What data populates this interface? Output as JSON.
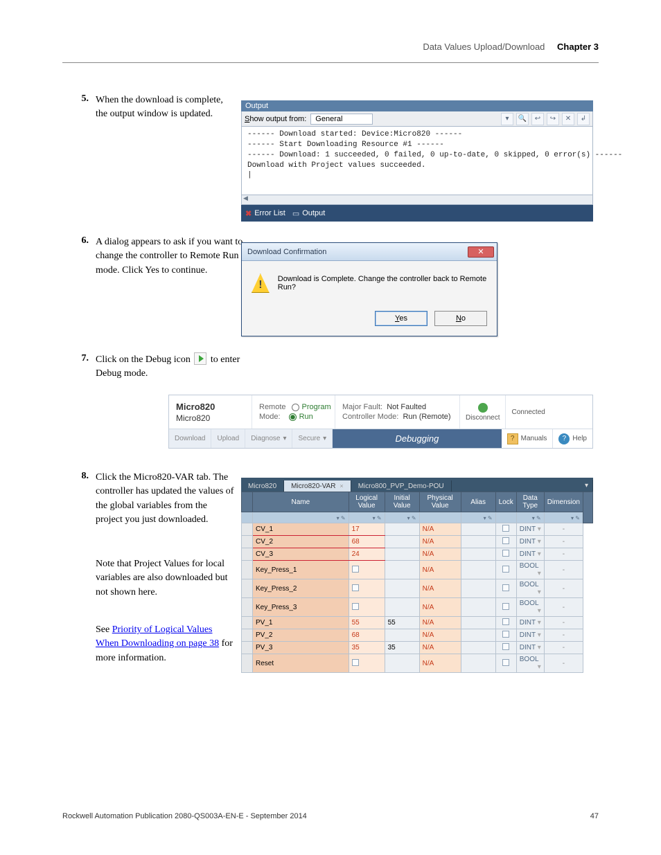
{
  "header": {
    "section": "Data Values Upload/Download",
    "chapter": "Chapter 3"
  },
  "footer": {
    "pub": "Rockwell Automation Publication 2080-QS003A-EN-E - September 2014",
    "page": "47"
  },
  "step5": {
    "num": "5.",
    "text": "When the download is complete, the output window is updated."
  },
  "output": {
    "title": "Output",
    "show_label": "Show output from:",
    "combo_value": "General",
    "body": "------ Download started: Device:Micro820 ------\n------ Start Downloading Resource #1 ------\n------ Download: 1 succeeded, 0 failed, 0 up-to-date, 0 skipped, 0 error(s) ------\nDownload with Project values succeeded.\n|",
    "tab_err": "Error List",
    "tab_out": "Output"
  },
  "step6": {
    "num": "6.",
    "text": "A dialog appears to ask if you want to change the controller to Remote Run mode. Click Yes to continue."
  },
  "dialog": {
    "title": "Download Confirmation",
    "msg": "Download is Complete. Change the controller back to Remote Run?",
    "yes": "Yes",
    "no": "No"
  },
  "step7": {
    "num": "7.",
    "text_before": "Click on the Debug icon",
    "text_after": "to enter Debug mode."
  },
  "ribbon": {
    "name": "Micro820",
    "sub": "Micro820",
    "mode_label": "Remote Mode:",
    "mode_opt1": "Program",
    "mode_opt2": "Run",
    "fault_lbl": "Major Fault:",
    "fault_val": "Not Faulted",
    "ctrl_lbl": "Controller Mode:",
    "ctrl_val": "Run (Remote)",
    "disconnect": "Disconnect",
    "connected": "Connected",
    "btn_download": "Download",
    "btn_upload": "Upload",
    "btn_diagnose": "Diagnose",
    "btn_secure": "Secure",
    "debugging": "Debugging",
    "manuals": "Manuals",
    "help": "Help"
  },
  "step8": {
    "num": "8.",
    "text": "Click the Micro820-VAR tab. The controller has updated the values of the global variables from the project you just downloaded.",
    "note_a": "Note that Project Values for local variables are also downloaded but not shown here.",
    "note_b1": "See ",
    "note_b_link": "Priority of Logical Values When Downloading on page 38",
    "note_b2": " for more information."
  },
  "vartabs": {
    "t1": "Micro820",
    "t2": "Micro820-VAR",
    "t3": "Micro800_PVP_Demo-POU"
  },
  "vartable": {
    "cols": [
      "",
      "Name",
      "Logical Value",
      "Initial Value",
      "Physical Value",
      "Alias",
      "Lock",
      "Data Type",
      "Dimension",
      ""
    ],
    "rows": [
      {
        "name": "CV_1",
        "lv": "17",
        "iv": "",
        "pv": "N/A",
        "dt": "DINT"
      },
      {
        "name": "CV_2",
        "lv": "68",
        "iv": "",
        "pv": "N/A",
        "dt": "DINT"
      },
      {
        "name": "CV_3",
        "lv": "24",
        "iv": "",
        "pv": "N/A",
        "dt": "DINT"
      },
      {
        "name": "Key_Press_1",
        "lv": "",
        "iv": "",
        "pv": "N/A",
        "dt": "BOOL"
      },
      {
        "name": "Key_Press_2",
        "lv": "",
        "iv": "",
        "pv": "N/A",
        "dt": "BOOL"
      },
      {
        "name": "Key_Press_3",
        "lv": "",
        "iv": "",
        "pv": "N/A",
        "dt": "BOOL"
      },
      {
        "name": "PV_1",
        "lv": "55",
        "iv": "55",
        "pv": "N/A",
        "dt": "DINT"
      },
      {
        "name": "PV_2",
        "lv": "68",
        "iv": "",
        "pv": "N/A",
        "dt": "DINT"
      },
      {
        "name": "PV_3",
        "lv": "35",
        "iv": "35",
        "pv": "N/A",
        "dt": "DINT"
      },
      {
        "name": "Reset",
        "lv": "",
        "iv": "",
        "pv": "N/A",
        "dt": "BOOL"
      }
    ]
  }
}
